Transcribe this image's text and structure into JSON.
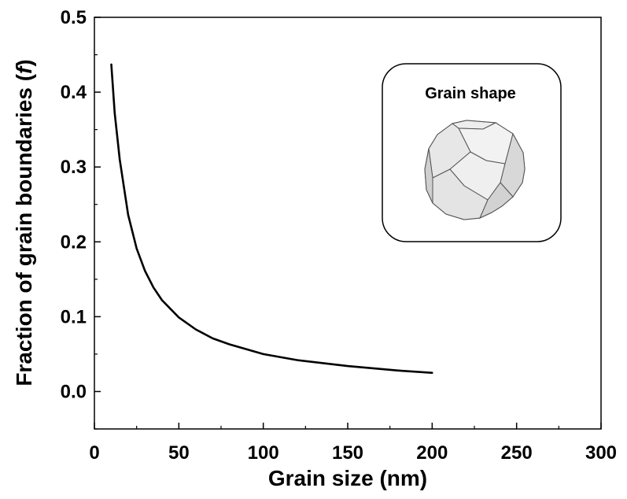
{
  "chart_data": {
    "type": "line",
    "xlabel": "Grain size (nm)",
    "ylabel_main": "Fraction of grain boundaries (",
    "ylabel_var": "f",
    "ylabel_end": ")",
    "xlim": [
      0,
      300
    ],
    "ylim": [
      -0.05,
      0.5
    ],
    "xticks": [
      0,
      50,
      100,
      150,
      200,
      250,
      300
    ],
    "xtick_labels": [
      "0",
      "50",
      "100",
      "150",
      "200",
      "250",
      "300"
    ],
    "yticks": [
      0.0,
      0.1,
      0.2,
      0.3,
      0.4,
      0.5
    ],
    "ytick_labels": [
      "0.0",
      "0.1",
      "0.2",
      "0.3",
      "0.4",
      "0.5"
    ],
    "grid": false,
    "series": [
      {
        "color": "#000000",
        "x": [
          10,
          12,
          15,
          20,
          25,
          30,
          35,
          40,
          50,
          60,
          70,
          80,
          100,
          120,
          150,
          180,
          200
        ],
        "y": [
          0.437,
          0.372,
          0.31,
          0.236,
          0.191,
          0.161,
          0.139,
          0.122,
          0.099,
          0.083,
          0.071,
          0.063,
          0.05,
          0.042,
          0.034,
          0.028,
          0.025
        ]
      }
    ],
    "inset": {
      "title": "Grain shape",
      "shape": "truncated-octahedron"
    }
  }
}
